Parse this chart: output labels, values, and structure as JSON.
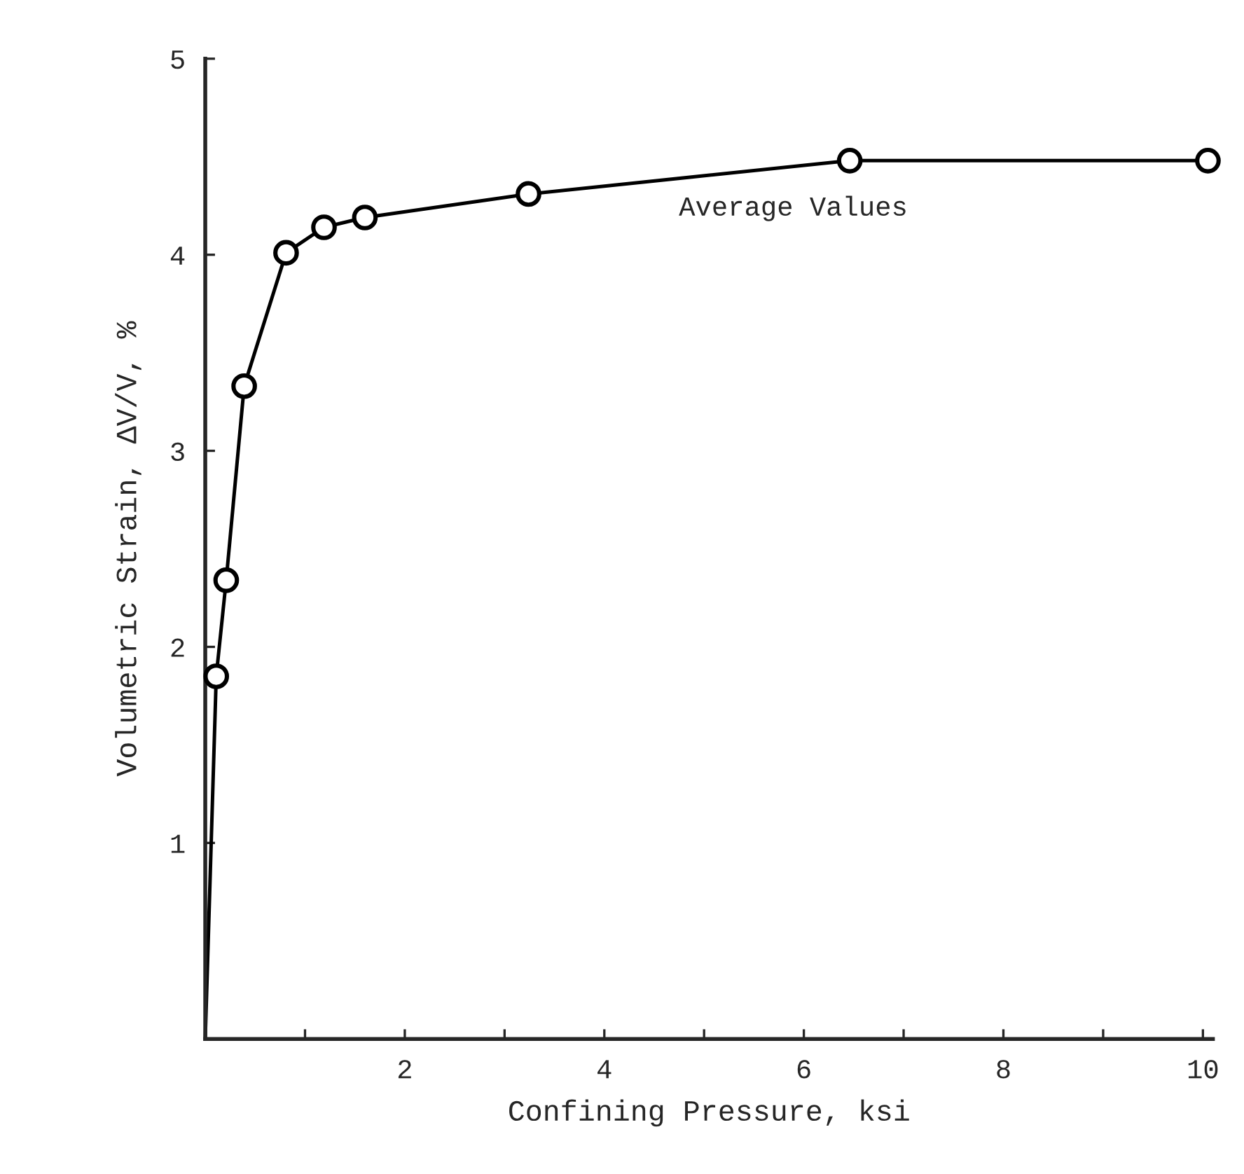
{
  "chart_data": {
    "type": "line",
    "xlabel": "Confining Pressure, ksi",
    "ylabel": "Volumetric Strain, ΔV/V, %",
    "annotations": [
      "Average Values"
    ],
    "series": [
      {
        "color": "#000000",
        "x": [
          0,
          0.11
        ],
        "values": [
          0,
          1.85
        ]
      },
      {
        "color": "#000000",
        "marker": "circle",
        "x": [
          0.11,
          0.21,
          0.39,
          0.81,
          1.19,
          1.6,
          3.24,
          6.46,
          10.05
        ],
        "values": [
          1.85,
          2.34,
          3.33,
          4.01,
          4.14,
          4.19,
          4.31,
          4.48,
          4.48
        ]
      }
    ],
    "xlim": [
      0,
      10.1
    ],
    "ylim": [
      0,
      5
    ],
    "xticks": [
      {
        "value": 1,
        "label": null
      },
      2,
      {
        "value": 3,
        "label": null
      },
      4,
      {
        "value": 5,
        "label": null
      },
      6,
      {
        "value": 7,
        "label": null
      },
      8,
      {
        "value": 9,
        "label": null
      },
      10
    ],
    "yticks": [
      1,
      2,
      3,
      4,
      5
    ],
    "grid": false,
    "legend": false
  }
}
